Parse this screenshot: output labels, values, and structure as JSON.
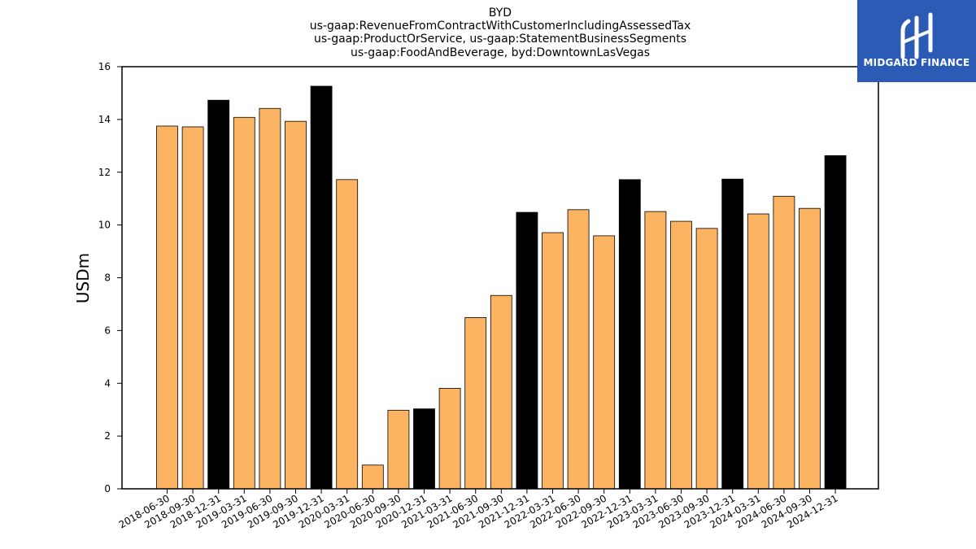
{
  "chart_data": {
    "type": "bar",
    "title_lines": [
      "BYD",
      "us-gaap:RevenueFromContractWithCustomerIncludingAssessedTax",
      "us-gaap:ProductOrService, us-gaap:StatementBusinessSegments",
      "us-gaap:FoodAndBeverage, byd:DowntownLasVegas"
    ],
    "xlabel": "",
    "ylabel": "USDm",
    "ylim": [
      0,
      16
    ],
    "yticks": [
      0,
      2,
      4,
      6,
      8,
      10,
      12,
      14,
      16
    ],
    "grid": false,
    "legend": "none",
    "categories": [
      "2018-06-30",
      "2018-09-30",
      "2018-12-31",
      "2019-03-31",
      "2019-06-30",
      "2019-09-30",
      "2019-12-31",
      "2020-03-31",
      "2020-06-30",
      "2020-09-30",
      "2020-12-31",
      "2021-03-31",
      "2021-06-30",
      "2021-09-30",
      "2021-12-31",
      "2022-03-31",
      "2022-06-30",
      "2022-09-30",
      "2022-12-31",
      "2023-03-31",
      "2023-06-30",
      "2023-09-30",
      "2023-12-31",
      "2024-03-31",
      "2024-06-30",
      "2024-09-30",
      "2024-12-31"
    ],
    "values": [
      13.75,
      13.72,
      14.73,
      14.08,
      14.42,
      13.93,
      15.26,
      11.72,
      0.9,
      2.98,
      3.03,
      3.81,
      6.49,
      7.33,
      10.48,
      9.71,
      10.58,
      9.59,
      11.72,
      10.51,
      10.14,
      9.87,
      11.74,
      10.42,
      11.09,
      10.63,
      12.63
    ],
    "bar_colors": {
      "quarter": "#fdb462",
      "year_end": "#000000",
      "edge": "#000000"
    }
  },
  "logo": {
    "text": "MIDGARD FINANCE",
    "background": "#2b5bb5",
    "icon": "midgard-logo-icon"
  }
}
